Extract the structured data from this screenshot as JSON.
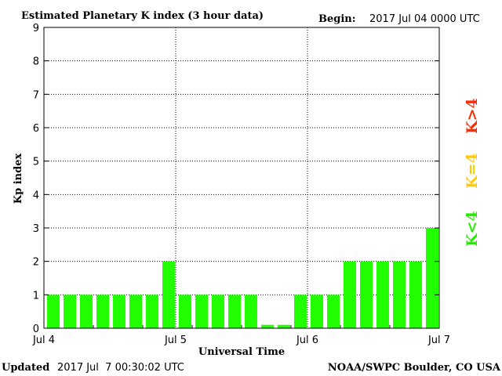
{
  "header": {
    "title": "Estimated Planetary K index (3 hour data)",
    "begin_label": "Begin:",
    "begin_value": "2017 Jul 04 0000 UTC"
  },
  "footer": {
    "updated_label": "Updated",
    "updated_value": "2017 Jul  7 00:30:02 UTC",
    "source": "NOAA/SWPC Boulder, CO USA"
  },
  "legend": [
    {
      "label": "K>4",
      "color": "#ff2a00"
    },
    {
      "label": "K=4",
      "color": "#ffcc00"
    },
    {
      "label": "K<4",
      "color": "#22ee00"
    }
  ],
  "colors": {
    "bar": "#22ff00",
    "axis": "#000000",
    "grid": "#000000"
  },
  "chart_data": {
    "type": "bar",
    "title": "Estimated Planetary K index (3 hour data)",
    "xlabel": "Universal Time",
    "ylabel": "Kp index",
    "ylim": [
      0,
      9
    ],
    "yticks": [
      "0",
      "1",
      "2",
      "3",
      "4",
      "5",
      "6",
      "7",
      "8",
      "9"
    ],
    "xticks": [
      "Jul 4",
      "Jul 5",
      "Jul 6",
      "Jul 7"
    ],
    "grid": true,
    "values": [
      1,
      1,
      1,
      1,
      1,
      1,
      1,
      2,
      1,
      1,
      1,
      1,
      1,
      0.1,
      0.1,
      1,
      1,
      1,
      2,
      2,
      2,
      2,
      2,
      3
    ]
  }
}
